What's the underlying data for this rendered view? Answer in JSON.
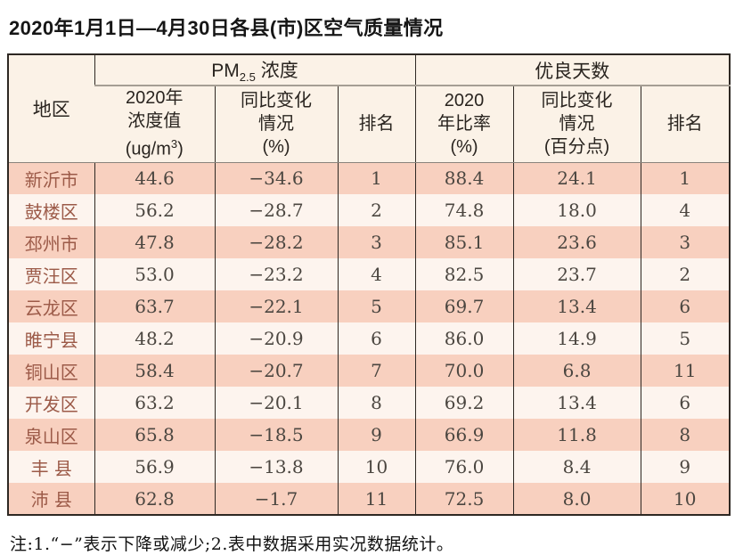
{
  "title": "2020年1月1日—4月30日各县(市)区空气质量情况",
  "colors": {
    "row_stripe_salmon": "#f8d0bf",
    "row_stripe_light": "#fdf4ee",
    "header_background": "#fbf2e7",
    "region_text": "#9c5a48",
    "border_dark": "#2e2823",
    "group_divider_gray": "#a59e94"
  },
  "table": {
    "header": {
      "region": "地区",
      "pm25_group": {
        "prefix": "PM",
        "sub": "2.5",
        "suffix": " 浓度"
      },
      "pm25_value": {
        "line1": "2020年",
        "line2": "浓度值",
        "line3_pre": "(ug/m",
        "line3_sup": "3",
        "line3_post": ")"
      },
      "pm25_change": {
        "line1": "同比变化",
        "line2": "情况",
        "line3": "(%)"
      },
      "pm25_rank": "排名",
      "good_group": "优良天数",
      "good_rate": {
        "line1": "2020",
        "line2": "年比率",
        "line3": "(%)"
      },
      "good_change": {
        "line1": "同比变化",
        "line2": "情况",
        "line3": "(百分点)"
      },
      "good_rank": "排名"
    },
    "rows": [
      {
        "region": "新沂市",
        "pm25_value": "44.6",
        "pm25_change": "−34.6",
        "pm25_rank": "1",
        "good_rate": "88.4",
        "good_change": "24.1",
        "good_rank": "1"
      },
      {
        "region": "鼓楼区",
        "pm25_value": "56.2",
        "pm25_change": "−28.7",
        "pm25_rank": "2",
        "good_rate": "74.8",
        "good_change": "18.0",
        "good_rank": "4"
      },
      {
        "region": "邳州市",
        "pm25_value": "47.8",
        "pm25_change": "−28.2",
        "pm25_rank": "3",
        "good_rate": "85.1",
        "good_change": "23.6",
        "good_rank": "3"
      },
      {
        "region": "贾汪区",
        "pm25_value": "53.0",
        "pm25_change": "−23.2",
        "pm25_rank": "4",
        "good_rate": "82.5",
        "good_change": "23.7",
        "good_rank": "2"
      },
      {
        "region": "云龙区",
        "pm25_value": "63.7",
        "pm25_change": "−22.1",
        "pm25_rank": "5",
        "good_rate": "69.7",
        "good_change": "13.4",
        "good_rank": "6"
      },
      {
        "region": "睢宁县",
        "pm25_value": "48.2",
        "pm25_change": "−20.9",
        "pm25_rank": "6",
        "good_rate": "86.0",
        "good_change": "14.9",
        "good_rank": "5"
      },
      {
        "region": "铜山区",
        "pm25_value": "58.4",
        "pm25_change": "−20.7",
        "pm25_rank": "7",
        "good_rate": "70.0",
        "good_change": "6.8",
        "good_rank": "11"
      },
      {
        "region": "开发区",
        "pm25_value": "63.2",
        "pm25_change": "−20.1",
        "pm25_rank": "8",
        "good_rate": "69.2",
        "good_change": "13.4",
        "good_rank": "6"
      },
      {
        "region": "泉山区",
        "pm25_value": "65.8",
        "pm25_change": "−18.5",
        "pm25_rank": "9",
        "good_rate": "66.9",
        "good_change": "11.8",
        "good_rank": "8"
      },
      {
        "region": "丰 县",
        "pm25_value": "56.9",
        "pm25_change": "−13.8",
        "pm25_rank": "10",
        "good_rate": "76.0",
        "good_change": "8.4",
        "good_rank": "9"
      },
      {
        "region": "沛 县",
        "pm25_value": "62.8",
        "pm25_change": "−1.7",
        "pm25_rank": "11",
        "good_rate": "72.5",
        "good_change": "8.0",
        "good_rank": "10"
      }
    ]
  },
  "footnote": "注:1.“−”表示下降或减少;2.表中数据采用实况数据统计。",
  "chart_data": {
    "type": "table",
    "title": "2020年1月1日—4月30日各县(市)区空气质量情况",
    "columns": [
      "地区",
      "PM2.5浓度 2020年浓度值(ug/m3)",
      "PM2.5浓度 同比变化情况(%)",
      "PM2.5浓度 排名",
      "优良天数 2020年比率(%)",
      "优良天数 同比变化情况(百分点)",
      "优良天数 排名"
    ],
    "rows": [
      [
        "新沂市",
        44.6,
        -34.6,
        1,
        88.4,
        24.1,
        1
      ],
      [
        "鼓楼区",
        56.2,
        -28.7,
        2,
        74.8,
        18.0,
        4
      ],
      [
        "邳州市",
        47.8,
        -28.2,
        3,
        85.1,
        23.6,
        3
      ],
      [
        "贾汪区",
        53.0,
        -23.2,
        4,
        82.5,
        23.7,
        2
      ],
      [
        "云龙区",
        63.7,
        -22.1,
        5,
        69.7,
        13.4,
        6
      ],
      [
        "睢宁县",
        48.2,
        -20.9,
        6,
        86.0,
        14.9,
        5
      ],
      [
        "铜山区",
        58.4,
        -20.7,
        7,
        70.0,
        6.8,
        11
      ],
      [
        "开发区",
        63.2,
        -20.1,
        8,
        69.2,
        13.4,
        6
      ],
      [
        "泉山区",
        65.8,
        -18.5,
        9,
        66.9,
        11.8,
        8
      ],
      [
        "丰县",
        56.9,
        -13.8,
        10,
        76.0,
        8.4,
        9
      ],
      [
        "沛县",
        62.8,
        -1.7,
        11,
        72.5,
        8.0,
        10
      ]
    ]
  }
}
